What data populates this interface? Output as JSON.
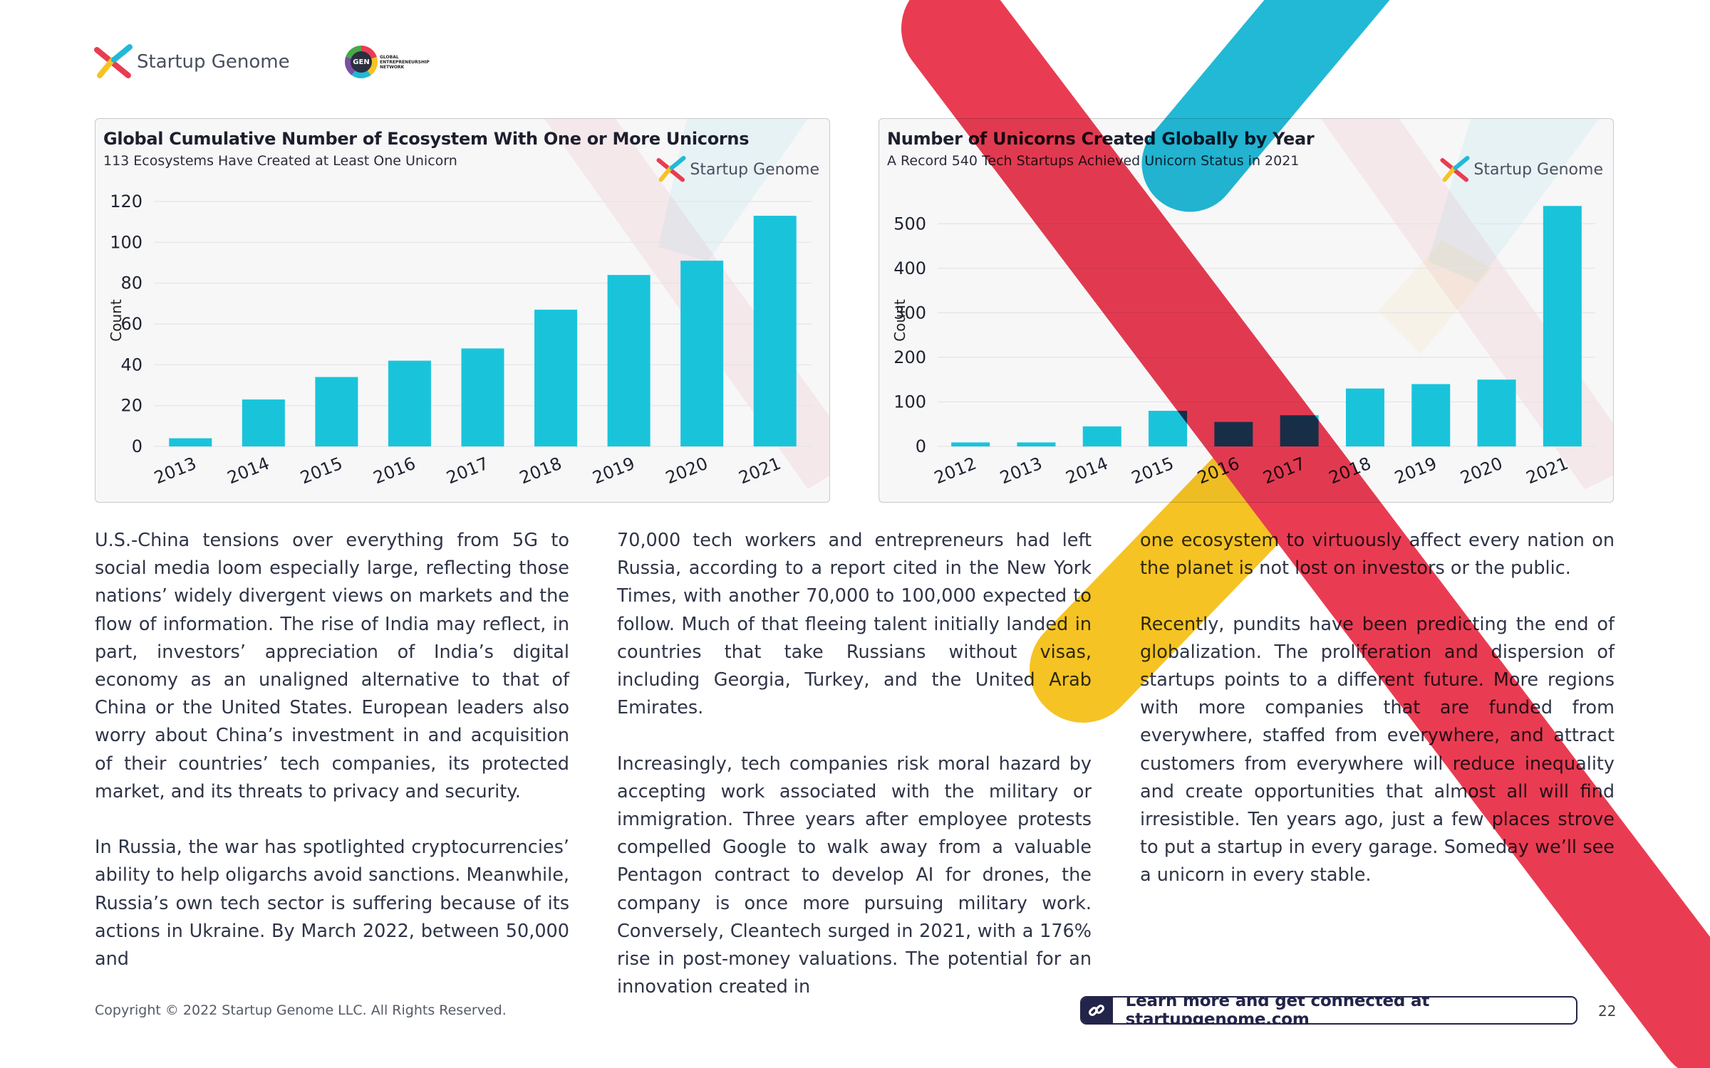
{
  "header": {
    "brand_name": "Startup Genome",
    "gen_logo_mark": "GEN",
    "gen_logo_text": "GLOBAL ENTREPRENEURSHIP NETWORK"
  },
  "brand_colors": {
    "red": "#e93c52",
    "cyan": "#22b9d6",
    "yellow": "#f6c324",
    "navy": "#23244a",
    "bar": "#19c4db"
  },
  "chart_data": [
    {
      "type": "bar",
      "title": "Global Cumulative Number of Ecosystem With One or More Unicorns",
      "subtitle": "113 Ecosystems Have Created at Least One Unicorn",
      "brand": "Startup Genome",
      "ylabel": "Count",
      "xlabel": "",
      "categories": [
        "2013",
        "2014",
        "2015",
        "2016",
        "2017",
        "2018",
        "2019",
        "2020",
        "2021"
      ],
      "values": [
        4,
        23,
        34,
        42,
        48,
        67,
        84,
        91,
        113
      ],
      "ylim": [
        0,
        120
      ],
      "yticks": [
        0,
        20,
        40,
        60,
        80,
        100,
        120
      ],
      "grid": true,
      "legend": "none"
    },
    {
      "type": "bar",
      "title": "Number of Unicorns Created Globally by Year",
      "subtitle": "A Record 540 Tech Startups Achieved Unicorn Status in 2021",
      "brand": "Startup Genome",
      "ylabel": "Count",
      "xlabel": "",
      "categories": [
        "2012",
        "2013",
        "2014",
        "2015",
        "2016",
        "2017",
        "2018",
        "2019",
        "2020",
        "2021"
      ],
      "values": [
        9,
        9,
        45,
        80,
        55,
        70,
        130,
        140,
        150,
        540
      ],
      "ylim": [
        0,
        550
      ],
      "yticks": [
        0,
        100,
        200,
        300,
        400,
        500
      ],
      "grid": true,
      "legend": "none"
    }
  ],
  "body": {
    "col1": [
      "U.S.-China tensions over everything from 5G to social media loom especially large, reflecting those nations’ widely divergent views on markets and the flow of information. The rise of India may reflect, in part, investors’ appreciation of India’s digital economy as an unaligned alternative to that of China or the United States. European leaders also worry about China’s investment in and acquisition of their countries’ tech companies, its protected market, and its threats to privacy and security.",
      "In Russia, the war has spotlighted cryptocurrencies’ ability to help oligarchs avoid sanctions. Meanwhile, Russia’s own tech sector is suffering because of its actions in Ukraine. By March 2022, between 50,000 and"
    ],
    "col2": [
      "70,000 tech workers and entrepreneurs had left Russia, according to a report cited in the New York Times, with another 70,000 to 100,000 expected to follow. Much of that fleeing talent initially landed in countries that take Russians without visas, including Georgia, Turkey, and the United Arab Emirates.",
      "Increasingly, tech companies risk moral hazard by accepting work associated with the military or immigration. Three years after employee protests compelled Google to walk away from a valuable Pentagon contract to develop AI for drones, the company is once more pursuing military work. Conversely, Cleantech surged in 2021, with a 176% rise in post-money valuations. The potential for an innovation created in"
    ],
    "col3": [
      "one ecosystem to virtuously affect every nation on the planet is not lost on investors or the public.",
      "Recently, pundits have been predicting the end of globalization. The proliferation and dispersion of startups points to a different future. More regions with more companies that are funded from everywhere, staffed from everywhere, and attract customers from everywhere will reduce inequality and create opportunities that almost all will find irresistible. Ten years ago, just a few places strove to put a startup in every garage. Someday we’ll see a unicorn in every stable."
    ]
  },
  "footer": {
    "copyright": "Copyright © 2022 Startup Genome LLC. All Rights Reserved.",
    "cta": "Learn more and get connected at startupgenome.com",
    "page_number": "22"
  }
}
